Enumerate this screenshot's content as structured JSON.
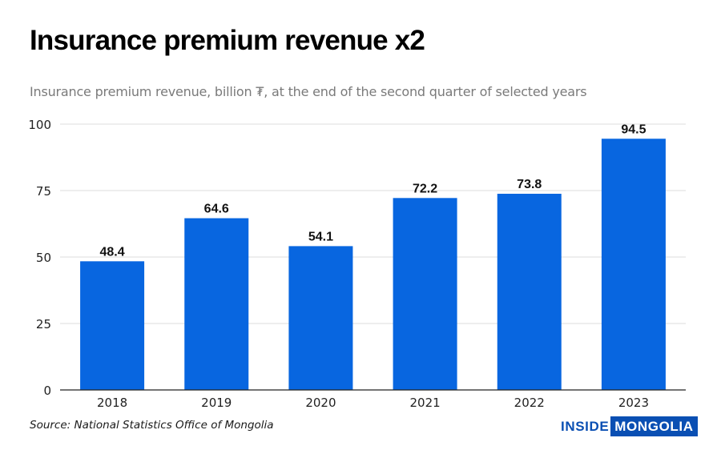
{
  "header": {
    "title": "Insurance premium revenue x2",
    "subtitle": "Insurance premium revenue, billion ₮, at the end of the second quarter of selected years"
  },
  "footer": {
    "source": "Source: National Statistics Office of Mongolia",
    "logo_part1": "INSIDE",
    "logo_part2": "MONGOLIA"
  },
  "colors": {
    "bar": "#0866e0",
    "grid": "#dcdcdc",
    "axis": "#222222",
    "brand": "#0a4fb3"
  },
  "chart_data": {
    "type": "bar",
    "title": "Insurance premium revenue x2",
    "subtitle": "Insurance premium revenue, billion ₮, at the end of the second quarter of selected years",
    "xlabel": "",
    "ylabel": "",
    "categories": [
      "2018",
      "2019",
      "2020",
      "2021",
      "2022",
      "2023"
    ],
    "values": [
      48.4,
      64.6,
      54.1,
      72.2,
      73.8,
      94.5
    ],
    "value_labels": [
      "48.4",
      "64.6",
      "54.1",
      "72.2",
      "73.8",
      "94.5"
    ],
    "ylim": [
      0,
      100
    ],
    "yticks": [
      0,
      25,
      50,
      75,
      100
    ],
    "ytick_labels": [
      "0",
      "25",
      "50",
      "75",
      "100"
    ],
    "grid": true,
    "legend": "none"
  }
}
